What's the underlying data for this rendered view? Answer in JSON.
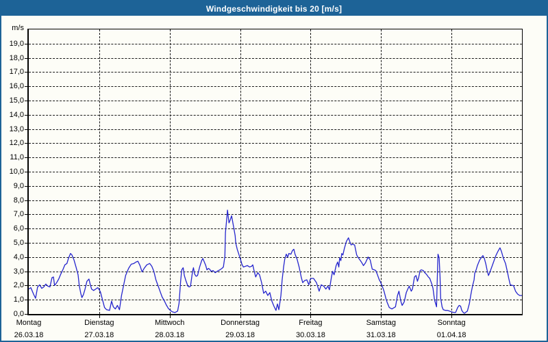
{
  "window": {
    "title": "Windgeschwindigkeit bis 20 [m/s]"
  },
  "colors": {
    "titlebar_bg": "#1d6397",
    "titlebar_fg": "#ffffff",
    "frame": "#1d6397",
    "background": "#fdfdf7",
    "plot_border": "#000000",
    "grid": "#151515",
    "line": "#2424cd"
  },
  "y_axis": {
    "unit": "m/s",
    "min": 0,
    "max": 20,
    "tick_step": 1,
    "tick_labels": [
      "0,0",
      "1,0",
      "2,0",
      "3,0",
      "4,0",
      "5,0",
      "6,0",
      "7,0",
      "8,0",
      "9,0",
      "10,0",
      "11,0",
      "12,0",
      "13,0",
      "14,0",
      "15,0",
      "16,0",
      "17,0",
      "18,0",
      "19,0"
    ]
  },
  "x_axis": {
    "days": [
      {
        "name": "Montag",
        "date": "26.03.18"
      },
      {
        "name": "Dienstag",
        "date": "27.03.18"
      },
      {
        "name": "Mittwoch",
        "date": "28.03.18"
      },
      {
        "name": "Donnerstag",
        "date": "29.03.18"
      },
      {
        "name": "Freitag",
        "date": "30.03.18"
      },
      {
        "name": "Samstag",
        "date": "31.03.18"
      },
      {
        "name": "Sonntag",
        "date": "01.04.18"
      }
    ]
  },
  "chart_data": {
    "type": "line",
    "title": "Windgeschwindigkeit bis 20 [m/s]",
    "ylabel": "m/s",
    "ylim": [
      0,
      20
    ],
    "xlim_hours": [
      0,
      168
    ],
    "grid": "dashed",
    "legend": "none",
    "x_unit": "hours since Montag 26.03.18 00:00",
    "series": [
      {
        "name": "Windgeschwindigkeit",
        "color": "#2424cd",
        "points": [
          [
            0,
            1.75
          ],
          [
            0.7,
            1.85
          ],
          [
            1.6,
            1.4
          ],
          [
            2.3,
            1.1
          ],
          [
            3,
            1.9
          ],
          [
            3.7,
            2.05
          ],
          [
            4.4,
            1.8
          ],
          [
            5.1,
            1.9
          ],
          [
            5.8,
            2.1
          ],
          [
            6.5,
            1.95
          ],
          [
            7.2,
            1.9
          ],
          [
            7.9,
            2.55
          ],
          [
            8.4,
            2.6
          ],
          [
            8.8,
            2.0
          ],
          [
            9.5,
            2.2
          ],
          [
            10.2,
            2.45
          ],
          [
            10.9,
            2.8
          ],
          [
            11.6,
            3.1
          ],
          [
            12.3,
            3.45
          ],
          [
            13,
            3.55
          ],
          [
            13.5,
            3.9
          ],
          [
            14.2,
            4.25
          ],
          [
            14.7,
            4.15
          ],
          [
            15.4,
            3.8
          ],
          [
            16.1,
            3.3
          ],
          [
            16.8,
            2.75
          ],
          [
            17.2,
            2.0
          ],
          [
            17.7,
            1.45
          ],
          [
            18.1,
            1.15
          ],
          [
            18.6,
            1.35
          ],
          [
            19.1,
            1.7
          ],
          [
            19.8,
            2.3
          ],
          [
            20.5,
            2.45
          ],
          [
            20.9,
            2.1
          ],
          [
            21.4,
            1.75
          ],
          [
            22.1,
            1.65
          ],
          [
            22.8,
            1.75
          ],
          [
            23.5,
            1.85
          ],
          [
            24,
            1.7
          ],
          [
            24.4,
            1.55
          ],
          [
            25.1,
            1.0
          ],
          [
            25.8,
            0.45
          ],
          [
            26.5,
            0.3
          ],
          [
            27.5,
            0.25
          ],
          [
            28.2,
            0.9
          ],
          [
            28.8,
            0.5
          ],
          [
            29.5,
            0.35
          ],
          [
            30.2,
            0.6
          ],
          [
            30.9,
            0.3
          ],
          [
            31.6,
            1.3
          ],
          [
            32.3,
            2.0
          ],
          [
            33,
            2.7
          ],
          [
            34,
            3.2
          ],
          [
            34.9,
            3.5
          ],
          [
            35.8,
            3.55
          ],
          [
            36.5,
            3.65
          ],
          [
            37.2,
            3.7
          ],
          [
            37.9,
            3.4
          ],
          [
            38.6,
            2.95
          ],
          [
            39.3,
            3.2
          ],
          [
            40.2,
            3.45
          ],
          [
            41.2,
            3.55
          ],
          [
            41.9,
            3.35
          ],
          [
            42.6,
            3.0
          ],
          [
            43.3,
            2.4
          ],
          [
            44,
            2.0
          ],
          [
            44.7,
            1.6
          ],
          [
            45.4,
            1.2
          ],
          [
            46.1,
            0.95
          ],
          [
            46.8,
            0.65
          ],
          [
            47.5,
            0.4
          ],
          [
            48.2,
            0.25
          ],
          [
            48.9,
            0.15
          ],
          [
            49.8,
            0.1
          ],
          [
            50.7,
            0.2
          ],
          [
            51.2,
            0.75
          ],
          [
            51.7,
            2.25
          ],
          [
            52.1,
            3.1
          ],
          [
            52.6,
            3.25
          ],
          [
            53,
            2.7
          ],
          [
            53.5,
            2.35
          ],
          [
            54.2,
            1.95
          ],
          [
            54.7,
            1.9
          ],
          [
            55.1,
            1.95
          ],
          [
            55.8,
            3.0
          ],
          [
            56.1,
            3.25
          ],
          [
            56.5,
            2.8
          ],
          [
            57,
            2.65
          ],
          [
            57.5,
            2.7
          ],
          [
            58.2,
            3.3
          ],
          [
            58.9,
            3.75
          ],
          [
            59.3,
            3.9
          ],
          [
            59.8,
            3.65
          ],
          [
            60.3,
            3.4
          ],
          [
            60.7,
            3.1
          ],
          [
            61.2,
            3.2
          ],
          [
            61.6,
            3.15
          ],
          [
            62.1,
            3.0
          ],
          [
            62.8,
            3.05
          ],
          [
            63.5,
            2.9
          ],
          [
            64.2,
            3.0
          ],
          [
            65.1,
            3.1
          ],
          [
            65.8,
            3.2
          ],
          [
            66.3,
            3.3
          ],
          [
            66.8,
            4.05
          ],
          [
            67,
            5.7
          ],
          [
            67.5,
            6.85
          ],
          [
            67.7,
            7.3
          ],
          [
            68.2,
            6.4
          ],
          [
            68.6,
            6.6
          ],
          [
            69.1,
            6.9
          ],
          [
            69.8,
            6.1
          ],
          [
            70.3,
            5.5
          ],
          [
            70.5,
            5.0
          ],
          [
            71,
            4.55
          ],
          [
            71.4,
            4.3
          ],
          [
            72.1,
            3.85
          ],
          [
            72.6,
            3.5
          ],
          [
            73.1,
            3.3
          ],
          [
            73.8,
            3.35
          ],
          [
            74.5,
            3.4
          ],
          [
            75.2,
            3.3
          ],
          [
            75.9,
            3.35
          ],
          [
            76.3,
            3.45
          ],
          [
            76.8,
            3.0
          ],
          [
            77.3,
            2.6
          ],
          [
            78,
            2.9
          ],
          [
            78.6,
            2.75
          ],
          [
            79.3,
            2.2
          ],
          [
            80,
            1.45
          ],
          [
            80.7,
            1.6
          ],
          [
            81.4,
            1.3
          ],
          [
            82.1,
            1.5
          ],
          [
            82.8,
            0.9
          ],
          [
            83.5,
            0.55
          ],
          [
            84.2,
            0.25
          ],
          [
            84.7,
            0.7
          ],
          [
            85.2,
            0.3
          ],
          [
            85.9,
            1.3
          ],
          [
            86.3,
            2.4
          ],
          [
            86.8,
            3.3
          ],
          [
            87.2,
            3.85
          ],
          [
            87.7,
            4.2
          ],
          [
            88.2,
            4.0
          ],
          [
            88.6,
            4.25
          ],
          [
            89.3,
            4.2
          ],
          [
            89.8,
            4.45
          ],
          [
            90.3,
            4.55
          ],
          [
            90.7,
            4.2
          ],
          [
            91.4,
            3.85
          ],
          [
            92.1,
            3.3
          ],
          [
            92.8,
            2.6
          ],
          [
            93.3,
            2.2
          ],
          [
            94,
            2.35
          ],
          [
            94.7,
            2.4
          ],
          [
            95.4,
            2.05
          ],
          [
            95.9,
            2.45
          ],
          [
            96.3,
            2.5
          ],
          [
            97,
            2.5
          ],
          [
            98,
            2.2
          ],
          [
            98.9,
            1.6
          ],
          [
            99.6,
            2.05
          ],
          [
            100.5,
            1.95
          ],
          [
            101.2,
            1.75
          ],
          [
            101.9,
            1.95
          ],
          [
            102.4,
            1.7
          ],
          [
            103.1,
            2.6
          ],
          [
            103.5,
            3.0
          ],
          [
            104,
            2.75
          ],
          [
            104.7,
            3.4
          ],
          [
            105.2,
            3.65
          ],
          [
            105.6,
            3.3
          ],
          [
            105.9,
            3.95
          ],
          [
            106.3,
            3.75
          ],
          [
            106.6,
            4.25
          ],
          [
            107,
            4.15
          ],
          [
            107.5,
            4.6
          ],
          [
            108.2,
            5.1
          ],
          [
            108.9,
            5.35
          ],
          [
            109.4,
            5.05
          ],
          [
            109.8,
            4.85
          ],
          [
            110.3,
            4.9
          ],
          [
            111,
            4.85
          ],
          [
            111.7,
            4.15
          ],
          [
            112.1,
            4.0
          ],
          [
            112.8,
            3.8
          ],
          [
            113.3,
            3.65
          ],
          [
            114,
            3.4
          ],
          [
            114.7,
            3.6
          ],
          [
            115.6,
            4.0
          ],
          [
            116.3,
            3.8
          ],
          [
            117,
            3.15
          ],
          [
            117.7,
            3.1
          ],
          [
            118.2,
            3.05
          ],
          [
            118.7,
            2.8
          ],
          [
            119.4,
            2.4
          ],
          [
            119.8,
            2.25
          ],
          [
            120.3,
            2.0
          ],
          [
            121,
            1.6
          ],
          [
            121.7,
            1.05
          ],
          [
            122.1,
            0.8
          ],
          [
            122.8,
            0.45
          ],
          [
            123.7,
            0.35
          ],
          [
            124.9,
            0.5
          ],
          [
            125.6,
            1.3
          ],
          [
            126.1,
            1.6
          ],
          [
            126.8,
            0.85
          ],
          [
            127.2,
            0.6
          ],
          [
            127.9,
            0.85
          ],
          [
            128.6,
            1.5
          ],
          [
            129.1,
            1.75
          ],
          [
            129.6,
            1.95
          ],
          [
            130.3,
            1.6
          ],
          [
            130.7,
            1.75
          ],
          [
            131.4,
            2.6
          ],
          [
            131.9,
            2.7
          ],
          [
            132.4,
            2.3
          ],
          [
            132.8,
            2.55
          ],
          [
            133.3,
            3.05
          ],
          [
            133.7,
            3.1
          ],
          [
            134.4,
            3.05
          ],
          [
            134.9,
            2.9
          ],
          [
            135.4,
            2.8
          ],
          [
            136.1,
            2.6
          ],
          [
            136.6,
            2.5
          ],
          [
            137.3,
            2.1
          ],
          [
            137.7,
            1.8
          ],
          [
            138.2,
            1.0
          ],
          [
            138.9,
            0.5
          ],
          [
            139.1,
            2.0
          ],
          [
            139.4,
            4.2
          ],
          [
            139.8,
            3.95
          ],
          [
            140.1,
            2.6
          ],
          [
            140.3,
            1.1
          ],
          [
            140.8,
            0.5
          ],
          [
            141.2,
            0.3
          ],
          [
            141.9,
            0.25
          ],
          [
            142.6,
            0.25
          ],
          [
            143.3,
            0.2
          ],
          [
            144,
            0.15
          ],
          [
            144.5,
            0.12
          ],
          [
            145,
            0.1
          ],
          [
            145.4,
            0.1
          ],
          [
            146.1,
            0.45
          ],
          [
            146.6,
            0.6
          ],
          [
            147.1,
            0.55
          ],
          [
            147.5,
            0.25
          ],
          [
            148,
            0.1
          ],
          [
            148.4,
            0.05
          ],
          [
            149.4,
            0.2
          ],
          [
            150.1,
            0.75
          ],
          [
            150.5,
            1.25
          ],
          [
            150.8,
            1.6
          ],
          [
            151.2,
            2.0
          ],
          [
            151.7,
            2.4
          ],
          [
            151.9,
            2.85
          ],
          [
            152.4,
            3.1
          ],
          [
            152.8,
            3.4
          ],
          [
            153.6,
            3.8
          ],
          [
            154.3,
            4.0
          ],
          [
            154.7,
            4.1
          ],
          [
            155.2,
            3.9
          ],
          [
            155.7,
            3.5
          ],
          [
            156.1,
            3.1
          ],
          [
            156.6,
            2.7
          ],
          [
            157,
            2.9
          ],
          [
            157.7,
            3.3
          ],
          [
            158.4,
            3.7
          ],
          [
            159.1,
            4.1
          ],
          [
            159.8,
            4.4
          ],
          [
            160.5,
            4.65
          ],
          [
            161,
            4.4
          ],
          [
            161.7,
            3.9
          ],
          [
            162.4,
            3.55
          ],
          [
            163.1,
            2.9
          ],
          [
            163.5,
            2.5
          ],
          [
            164,
            2.05
          ],
          [
            164.7,
            2.0
          ],
          [
            165.1,
            2.0
          ],
          [
            165.8,
            1.6
          ],
          [
            166.5,
            1.4
          ],
          [
            167.2,
            1.3
          ],
          [
            168,
            1.3
          ]
        ]
      }
    ]
  }
}
